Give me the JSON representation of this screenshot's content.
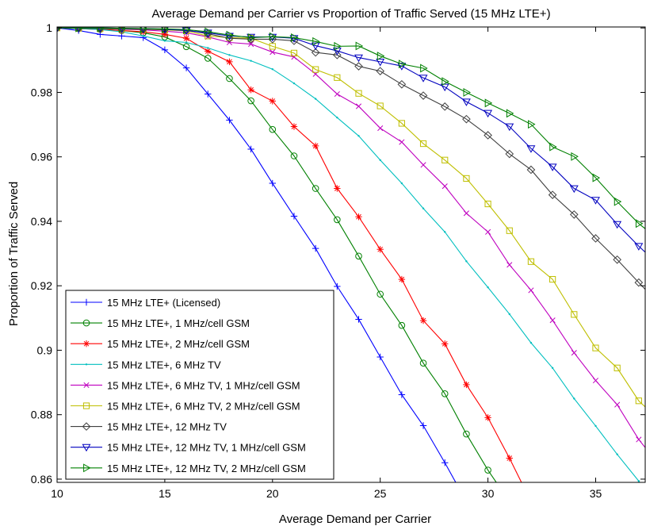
{
  "chart_data": {
    "type": "line",
    "title": "Average Demand per Carrier vs Proportion of Traffic Served (15 MHz LTE+)",
    "xlabel": "Average Demand per Carrier",
    "ylabel": "Proportion of Traffic Served",
    "xlim": [
      10,
      37.3
    ],
    "ylim": [
      0.859,
      1.0003
    ],
    "xticks": [
      10,
      15,
      20,
      25,
      30,
      35
    ],
    "yticks": [
      0.86,
      0.88,
      0.9,
      0.92,
      0.94,
      0.96,
      0.98,
      1
    ],
    "xtick_labels": [
      "10",
      "15",
      "20",
      "25",
      "30",
      "35"
    ],
    "ytick_labels": [
      "0.86",
      "0.88",
      "0.9",
      "0.92",
      "0.94",
      "0.96",
      "0.98",
      "1"
    ],
    "grid": false,
    "legend_position": "bottom-left",
    "x": [
      10,
      11,
      12,
      13,
      14,
      15,
      16,
      17,
      18,
      19,
      20,
      21,
      22,
      23,
      24,
      25,
      26,
      27,
      28,
      29,
      30,
      31,
      32,
      33,
      34,
      35,
      36,
      37,
      38
    ],
    "series": [
      {
        "name": "15 MHz LTE+ (Licensed)",
        "color": "#0000ff",
        "marker": "plus",
        "values": [
          1.0,
          0.9992,
          0.998,
          0.9975,
          0.997,
          0.9932,
          0.9876,
          0.9795,
          0.9714,
          0.9624,
          0.9518,
          0.9416,
          0.9316,
          0.9198,
          0.9096,
          0.8979,
          0.8862,
          0.8766,
          0.8651,
          0.853,
          null,
          null,
          null,
          null,
          null,
          null,
          null,
          null,
          null
        ]
      },
      {
        "name": "15 MHz LTE+, 1 MHz/cell GSM",
        "color": "#008000",
        "marker": "circle",
        "values": [
          1.0,
          0.9998,
          0.9996,
          0.9992,
          0.9985,
          0.9972,
          0.9942,
          0.9906,
          0.9843,
          0.9774,
          0.9685,
          0.9603,
          0.9502,
          0.9405,
          0.9292,
          0.9174,
          0.9077,
          0.896,
          0.8865,
          0.874,
          0.8628,
          0.853,
          null,
          null,
          null,
          null,
          null,
          null,
          null
        ]
      },
      {
        "name": "15 MHz LTE+, 2 MHz/cell GSM",
        "color": "#ff0000",
        "marker": "star",
        "values": [
          1.0,
          0.9998,
          0.9995,
          0.9992,
          0.9988,
          0.998,
          0.9968,
          0.9928,
          0.9895,
          0.9808,
          0.9773,
          0.9694,
          0.9634,
          0.9502,
          0.9414,
          0.9313,
          0.922,
          0.9092,
          0.902,
          0.8893,
          0.8791,
          0.8665,
          0.853,
          null,
          null,
          null,
          null,
          null,
          null
        ]
      },
      {
        "name": "15 MHz LTE+, 6 MHz TV",
        "color": "#00bfbf",
        "marker": "dot",
        "values": [
          1.0,
          0.9998,
          0.9995,
          0.9988,
          0.9975,
          0.996,
          0.9955,
          0.9938,
          0.9916,
          0.9898,
          0.9872,
          0.9828,
          0.978,
          0.9722,
          0.9665,
          0.959,
          0.9518,
          0.944,
          0.9367,
          0.9276,
          0.9195,
          0.9112,
          0.9023,
          0.8945,
          0.885,
          0.8765,
          0.8677,
          0.8594,
          0.85
        ]
      },
      {
        "name": "15 MHz LTE+, 6 MHz TV, 1 MHz/cell GSM",
        "color": "#bf00bf",
        "marker": "x",
        "values": [
          1.0,
          0.9999,
          0.9998,
          0.9996,
          0.9994,
          0.999,
          0.9985,
          0.9972,
          0.9955,
          0.995,
          0.9925,
          0.991,
          0.9857,
          0.9795,
          0.9757,
          0.9689,
          0.9646,
          0.9575,
          0.9509,
          0.9425,
          0.9367,
          0.9265,
          0.9186,
          0.9093,
          0.8992,
          0.8906,
          0.8831,
          0.8723,
          0.864
        ]
      },
      {
        "name": "15 MHz LTE+, 6 MHz TV, 2 MHz/cell GSM",
        "color": "#bfbf00",
        "marker": "square",
        "values": [
          1.0,
          0.9999,
          0.9998,
          0.9997,
          0.9996,
          0.9994,
          0.9991,
          0.9975,
          0.997,
          0.9968,
          0.9943,
          0.9922,
          0.9871,
          0.9846,
          0.9797,
          0.9758,
          0.9704,
          0.9641,
          0.959,
          0.9533,
          0.9454,
          0.9371,
          0.9275,
          0.922,
          0.9111,
          0.9007,
          0.8945,
          0.8843,
          0.878
        ]
      },
      {
        "name": "15 MHz LTE+, 12 MHz TV",
        "color": "#404040",
        "marker": "diamond",
        "values": [
          1.0,
          0.9999,
          0.9998,
          0.9997,
          0.9996,
          0.9995,
          0.9993,
          0.9982,
          0.9968,
          0.9965,
          0.9965,
          0.996,
          0.9924,
          0.9916,
          0.9881,
          0.9866,
          0.9825,
          0.979,
          0.9756,
          0.9717,
          0.9667,
          0.9609,
          0.956,
          0.9482,
          0.9421,
          0.9347,
          0.9281,
          0.921,
          0.914
        ]
      },
      {
        "name": "15 MHz LTE+, 12 MHz TV, 1 MHz/cell GSM",
        "color": "#0000bf",
        "marker": "triangle-down",
        "values": [
          1.0,
          1.0,
          1.0,
          0.9999,
          0.9998,
          0.9996,
          0.9992,
          0.9985,
          0.9975,
          0.9972,
          0.9972,
          0.9968,
          0.9945,
          0.9929,
          0.9908,
          0.9895,
          0.9882,
          0.9845,
          0.9817,
          0.9771,
          0.9736,
          0.9694,
          0.9626,
          0.9569,
          0.9502,
          0.9466,
          0.9391,
          0.9323,
          0.926
        ]
      },
      {
        "name": "15 MHz LTE+, 12 MHz TV, 2 MHz/cell GSM",
        "color": "#008000",
        "marker": "triangle-right",
        "values": [
          1.0,
          1.0,
          1.0,
          0.9999,
          0.9998,
          0.9997,
          0.9995,
          0.9988,
          0.9978,
          0.997,
          0.9973,
          0.997,
          0.9958,
          0.9943,
          0.9944,
          0.9913,
          0.9888,
          0.9875,
          0.9834,
          0.98,
          0.9767,
          0.9735,
          0.9701,
          0.9631,
          0.9601,
          0.9535,
          0.9461,
          0.9393,
          0.934
        ]
      }
    ]
  }
}
